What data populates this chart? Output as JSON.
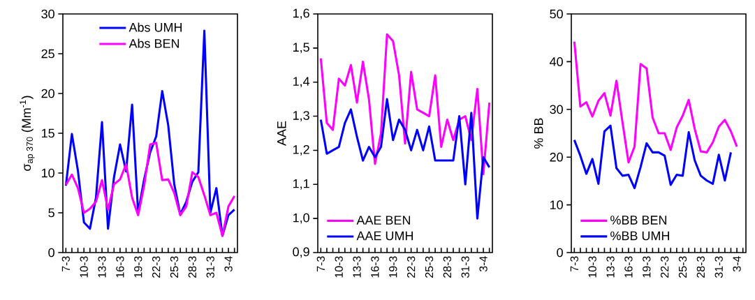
{
  "chart_data": [
    {
      "type": "line",
      "ylabel": "σ$_{ap 370}$ (Mm$^{-1}$)",
      "categories": [
        "7-3",
        null,
        null,
        "10-3",
        null,
        null,
        "13-3",
        null,
        null,
        "16-3",
        null,
        null,
        "19-3",
        null,
        null,
        "22-3",
        null,
        null,
        "25-3",
        null,
        null,
        "28-3",
        null,
        null,
        "31-3",
        null,
        null,
        "3-4",
        null
      ],
      "ylim": [
        0,
        30
      ],
      "yticks": [
        0,
        5,
        10,
        15,
        20,
        25,
        30
      ],
      "legend": "top",
      "series": [
        {
          "name": "Abs UMH",
          "color": "#0000ff",
          "values": [
            8.4,
            14.9,
            10.3,
            3.8,
            3.0,
            6.9,
            16.4,
            3.0,
            9.5,
            13.6,
            10.2,
            18.6,
            5.0,
            9.2,
            12.6,
            14.6,
            20.3,
            16.0,
            8.6,
            4.8,
            6.4,
            8.9,
            10.1,
            27.9,
            5.0,
            8.1,
            2.1,
            4.7,
            5.4
          ]
        },
        {
          "name": "Abs BEN",
          "color": "#ff00ff",
          "values": [
            8.5,
            9.8,
            8.1,
            5.0,
            5.5,
            6.4,
            9.1,
            5.4,
            8.6,
            9.2,
            11.1,
            6.9,
            4.7,
            8.4,
            13.6,
            13.8,
            9.1,
            9.2,
            7.5,
            4.7,
            5.8,
            10.1,
            9.5,
            7.2,
            4.7,
            5.0,
            2.1,
            5.8,
            7.1
          ]
        }
      ]
    },
    {
      "type": "line",
      "ylabel": "AAE",
      "categories": [
        "7-3",
        null,
        null,
        "10-3",
        null,
        null,
        "13-3",
        null,
        null,
        "16-3",
        null,
        null,
        "19-3",
        null,
        null,
        "22-3",
        null,
        null,
        "25-3",
        null,
        null,
        "28-3",
        null,
        null,
        "31-3",
        null,
        null,
        "3-4",
        null
      ],
      "ylim": [
        0.9,
        1.6
      ],
      "yticks": [
        {
          "value": 0.9,
          "label": "0,9"
        },
        {
          "value": 1.0,
          "label": "1,0"
        },
        {
          "value": 1.1,
          "label": "1,1"
        },
        {
          "value": 1.2,
          "label": "1,2"
        },
        {
          "value": 1.3,
          "label": "1,3"
        },
        {
          "value": 1.4,
          "label": "1,4"
        },
        {
          "value": 1.5,
          "label": "1,5"
        },
        {
          "value": 1.6,
          "label": "1,6"
        }
      ],
      "legend": "bottom left",
      "series": [
        {
          "name": "AAE BEN",
          "color": "#ff00ff",
          "values": [
            1.47,
            1.28,
            1.26,
            1.41,
            1.39,
            1.45,
            1.34,
            1.46,
            1.35,
            1.16,
            1.25,
            1.54,
            1.52,
            1.42,
            1.22,
            1.43,
            1.32,
            1.31,
            1.3,
            1.42,
            1.21,
            1.29,
            1.23,
            1.29,
            1.3,
            1.23,
            1.38,
            1.13,
            1.34
          ]
        },
        {
          "name": "AAE UMH",
          "color": "#0000ff",
          "values": [
            1.29,
            1.19,
            1.2,
            1.21,
            1.28,
            1.32,
            1.24,
            1.17,
            1.21,
            1.18,
            1.21,
            1.35,
            1.23,
            1.29,
            1.26,
            1.2,
            1.26,
            1.2,
            1.27,
            1.17,
            1.17,
            1.17,
            1.17,
            1.3,
            1.1,
            1.31,
            1.0,
            1.18,
            1.15
          ]
        }
      ]
    },
    {
      "type": "line",
      "ylabel": "% BB",
      "categories": [
        "7-3",
        null,
        null,
        "10-3",
        null,
        null,
        "13-3",
        null,
        null,
        "16-3",
        null,
        null,
        "19-3",
        null,
        null,
        "22-3",
        null,
        null,
        "25-3",
        null,
        null,
        "28-3",
        null,
        null,
        "31-3",
        null,
        null,
        "3-4",
        null
      ],
      "ylim": [
        0,
        50
      ],
      "yticks": [
        0,
        10,
        20,
        30,
        40,
        50
      ],
      "legend": "bottom left",
      "series": [
        {
          "name": "%BB BEN",
          "color": "#ff00ff",
          "values": [
            44.2,
            30.6,
            31.5,
            28.5,
            31.8,
            33.4,
            28.7,
            36.0,
            27.3,
            18.9,
            22.2,
            39.5,
            38.6,
            28.3,
            25.0,
            25.0,
            21.5,
            26.2,
            28.7,
            32.0,
            25.9,
            21.2,
            21.0,
            23.1,
            26.4,
            27.8,
            25.4,
            22.2,
            null
          ]
        },
        {
          "name": "%BB UMH",
          "color": "#0000ff",
          "values": [
            23.6,
            20.3,
            16.5,
            19.6,
            14.4,
            25.4,
            26.6,
            17.7,
            16.1,
            16.3,
            13.5,
            17.9,
            22.9,
            21.0,
            21.0,
            20.3,
            14.2,
            16.3,
            16.1,
            25.2,
            19.3,
            16.1,
            15.1,
            14.4,
            20.5,
            15.1,
            21.0,
            null,
            null
          ]
        }
      ]
    }
  ]
}
